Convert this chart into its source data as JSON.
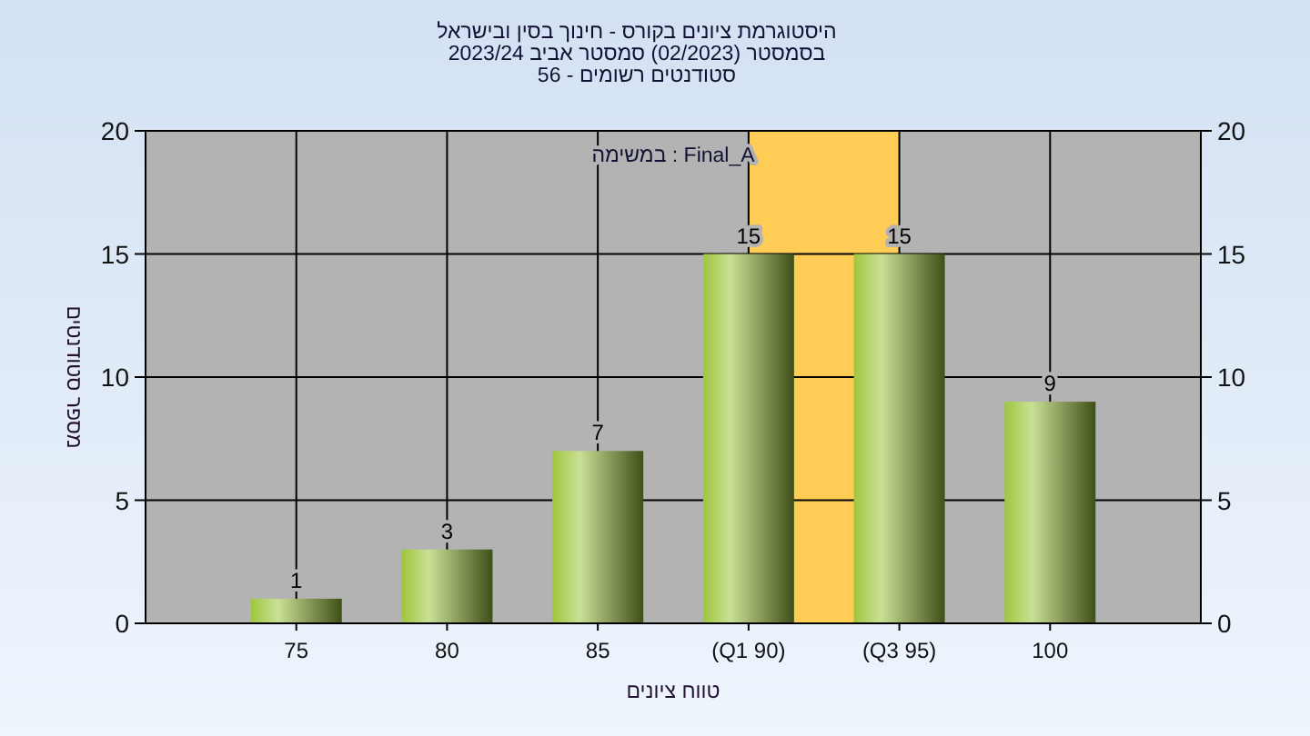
{
  "chart_data": {
    "type": "bar",
    "title": "היסטוגרמת ציונים בקורס - חינוך בסין ובישראל",
    "subtitle": "בסמסטר  (02/2023)  סמסטר אביב 2023/24\nסטודנטים רשומים - 56",
    "xlabel": "טווח ציונים",
    "ylabel": "מספר סטודנטים",
    "annotations": [
      "במשימה : Final_A"
    ],
    "categories": [
      "75",
      "80",
      "85",
      "(Q1 90)",
      "(Q3 95)",
      "100"
    ],
    "series": [
      {
        "color": "#9ec63e",
        "values": [
          1,
          3,
          7,
          15,
          15,
          9
        ],
        "value_labels": [
          "1",
          "3",
          "7",
          "15",
          "15",
          "9"
        ]
      }
    ],
    "bands": [
      {
        "axis": "x",
        "from": "(Q1 90)",
        "to": "(Q3 95)",
        "color": "#ffcc55"
      }
    ],
    "ylim": [
      0,
      20
    ],
    "yticks": [
      0,
      5,
      10,
      15,
      20
    ],
    "y2lim": [
      0,
      20
    ],
    "y2ticks": [
      0,
      5,
      10,
      15,
      20
    ],
    "grid": true
  }
}
